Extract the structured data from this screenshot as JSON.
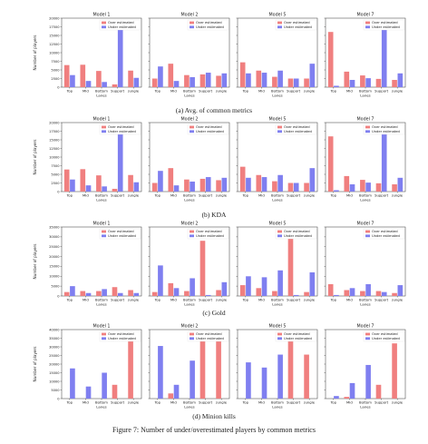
{
  "figure_caption": "Figure 7: Number of under/overestimated players by common metrics",
  "colors": {
    "over": "#f07f7f",
    "under": "#7f7ff0"
  },
  "axis_text": {
    "ylabel": "Number of players",
    "xlabel": "Lanes",
    "legend_over": "Over estimated",
    "legend_under": "Under estimated"
  },
  "categories": [
    "Top",
    "Mid",
    "Bottom",
    "Support",
    "Jungle"
  ],
  "chart_data": [
    {
      "type": "bar",
      "caption": "(a) Avg. of common metrics",
      "ylim": [
        0,
        20000
      ],
      "yticks": [
        0,
        2500,
        5000,
        7500,
        10000,
        12500,
        15000,
        17500,
        20000
      ],
      "panels": [
        {
          "title": "Model 1",
          "series": [
            {
              "name": "Over estimated",
              "values": [
                6400,
                6500,
                4700,
                800,
                4800
              ]
            },
            {
              "name": "Under estimated",
              "values": [
                3500,
                1800,
                1500,
                17800,
                2700
              ]
            }
          ]
        },
        {
          "title": "Model 2",
          "series": [
            {
              "name": "Over estimated",
              "values": [
                2500,
                6800,
                3500,
                3700,
                3300
              ]
            },
            {
              "name": "Under estimated",
              "values": [
                6000,
                1800,
                2900,
                4200,
                4000
              ]
            }
          ]
        },
        {
          "title": "Model 5",
          "series": [
            {
              "name": "Over estimated",
              "values": [
                7200,
                4800,
                3000,
                2500,
                2500
              ]
            },
            {
              "name": "Under estimated",
              "values": [
                4000,
                4200,
                4800,
                2500,
                6800
              ]
            }
          ]
        },
        {
          "title": "Model 7",
          "series": [
            {
              "name": "Over estimated",
              "values": [
                16000,
                4500,
                3400,
                2400,
                2100
              ]
            },
            {
              "name": "Under estimated",
              "values": [
                400,
                2100,
                2600,
                17500,
                4000
              ]
            }
          ]
        }
      ]
    },
    {
      "type": "bar",
      "caption": "(b) KDA",
      "ylim": [
        0,
        20000
      ],
      "yticks": [
        0,
        2500,
        5000,
        7500,
        10000,
        12500,
        15000,
        17500,
        20000
      ],
      "panels": [
        {
          "title": "Model 1",
          "series": [
            {
              "name": "Over estimated",
              "values": [
                6400,
                6500,
                4700,
                800,
                4800
              ]
            },
            {
              "name": "Under estimated",
              "values": [
                3500,
                1800,
                1500,
                17800,
                2700
              ]
            }
          ]
        },
        {
          "title": "Model 2",
          "series": [
            {
              "name": "Over estimated",
              "values": [
                2500,
                6800,
                3500,
                3700,
                3300
              ]
            },
            {
              "name": "Under estimated",
              "values": [
                6000,
                1800,
                2900,
                4200,
                4000
              ]
            }
          ]
        },
        {
          "title": "Model 5",
          "series": [
            {
              "name": "Over estimated",
              "values": [
                7200,
                4800,
                3000,
                2500,
                2500
              ]
            },
            {
              "name": "Under estimated",
              "values": [
                4000,
                4200,
                4800,
                2500,
                6800
              ]
            }
          ]
        },
        {
          "title": "Model 7",
          "series": [
            {
              "name": "Over estimated",
              "values": [
                16000,
                4500,
                3400,
                2400,
                2100
              ]
            },
            {
              "name": "Under estimated",
              "values": [
                400,
                2100,
                2600,
                17500,
                4000
              ]
            }
          ]
        }
      ]
    },
    {
      "type": "bar",
      "caption": "(c) Gold",
      "ylim": [
        0,
        35000
      ],
      "yticks": [
        0,
        5000,
        10000,
        15000,
        20000,
        25000,
        30000,
        35000
      ],
      "panels": [
        {
          "title": "Model 1",
          "series": [
            {
              "name": "Over estimated",
              "values": [
                2000,
                2500,
                2500,
                4500,
                3000
              ]
            },
            {
              "name": "Under estimated",
              "values": [
                5000,
                1500,
                3500,
                1500,
                1500
              ]
            }
          ]
        },
        {
          "title": "Model 2",
          "series": [
            {
              "name": "Over estimated",
              "values": [
                2000,
                6500,
                2500,
                28000,
                3000
              ]
            },
            {
              "name": "Under estimated",
              "values": [
                15500,
                4000,
                9000,
                500,
                7000
              ]
            }
          ]
        },
        {
          "title": "Model 5",
          "series": [
            {
              "name": "Over estimated",
              "values": [
                5500,
                4000,
                2500,
                30000,
                2000
              ]
            },
            {
              "name": "Under estimated",
              "values": [
                10000,
                9500,
                13000,
                500,
                12000
              ]
            }
          ]
        },
        {
          "title": "Model 7",
          "series": [
            {
              "name": "Over estimated",
              "values": [
                6000,
                3000,
                2500,
                2500,
                1500
              ]
            },
            {
              "name": "Under estimated",
              "values": [
                500,
                4000,
                6000,
                2000,
                5500
              ]
            }
          ]
        }
      ]
    },
    {
      "type": "bar",
      "caption": "(d) Minion kills",
      "ylim": [
        0,
        40000
      ],
      "yticks": [
        0,
        5000,
        10000,
        15000,
        20000,
        25000,
        30000,
        35000,
        40000
      ],
      "panels": [
        {
          "title": "Model 1",
          "series": [
            {
              "name": "Over estimated",
              "values": [
                0,
                0,
                0,
                8000,
                36000
              ]
            },
            {
              "name": "Under estimated",
              "values": [
                17500,
                7000,
                15000,
                0,
                0
              ]
            }
          ]
        },
        {
          "title": "Model 2",
          "series": [
            {
              "name": "Over estimated",
              "values": [
                0,
                3000,
                0,
                34000,
                33500
              ]
            },
            {
              "name": "Under estimated",
              "values": [
                30500,
                8000,
                22000,
                0,
                0
              ]
            }
          ]
        },
        {
          "title": "Model 5",
          "series": [
            {
              "name": "Over estimated",
              "values": [
                0,
                0,
                0,
                36500,
                25500
              ]
            },
            {
              "name": "Under estimated",
              "values": [
                21000,
                18000,
                25500,
                0,
                0
              ]
            }
          ]
        },
        {
          "title": "Model 7",
          "series": [
            {
              "name": "Over estimated",
              "values": [
                0,
                1000,
                0,
                8000,
                32000
              ]
            },
            {
              "name": "Under estimated",
              "values": [
                1500,
                9000,
                19500,
                0,
                0
              ]
            }
          ]
        }
      ]
    }
  ]
}
